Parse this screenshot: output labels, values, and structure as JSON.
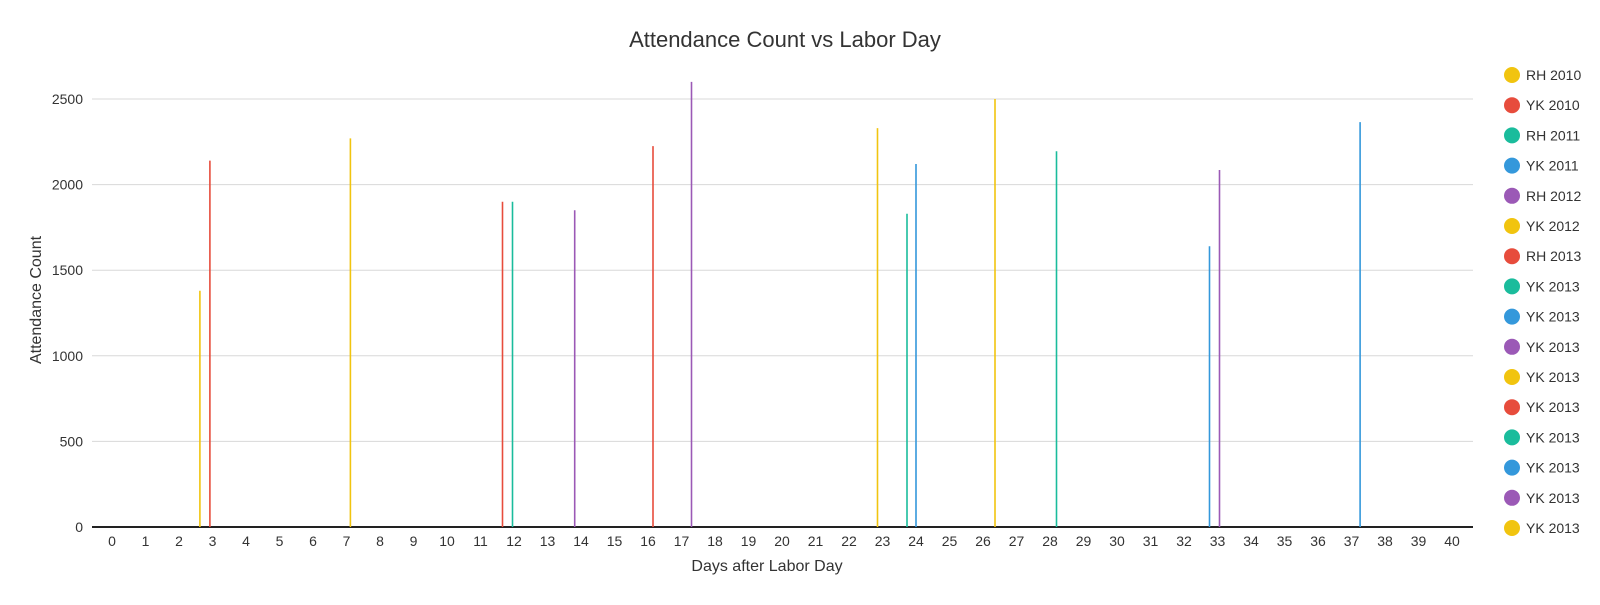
{
  "chart_data": {
    "type": "bar",
    "title": "Attendance Count vs Labor Day",
    "xlabel": "Days after Labor Day",
    "ylabel": "Attendance Count",
    "categories": [
      0,
      1,
      2,
      3,
      4,
      5,
      6,
      7,
      8,
      9,
      10,
      11,
      12,
      13,
      14,
      15,
      16,
      17,
      18,
      19,
      20,
      21,
      22,
      23,
      24,
      25,
      26,
      27,
      28,
      29,
      30,
      31,
      32,
      33,
      34,
      35,
      36,
      37,
      38,
      39,
      40
    ],
    "yticks": [
      0,
      500,
      1000,
      1500,
      2000,
      2500
    ],
    "ylim": [
      0,
      2600
    ],
    "grid": true,
    "legend_position": "right",
    "series": [
      {
        "name": "RH 2010",
        "color": "#f1c40f",
        "points": [
          {
            "x": 3,
            "y": 1380
          }
        ]
      },
      {
        "name": "YK 2010",
        "color": "#e74c3c",
        "points": [
          {
            "x": 3,
            "y": 2140
          }
        ]
      },
      {
        "name": "RH 2011",
        "color": "#1abc9c",
        "points": [
          {
            "x": 12,
            "y": 1900
          }
        ]
      },
      {
        "name": "YK 2011",
        "color": "#3498db",
        "points": [
          {
            "x": 24,
            "y": 2120
          }
        ]
      },
      {
        "name": "RH 2012",
        "color": "#9b59b6",
        "points": [
          {
            "x": 14,
            "y": 1850
          }
        ]
      },
      {
        "name": "YK 2012",
        "color": "#f1c40f",
        "points": [
          {
            "x": 7,
            "y": 2270
          }
        ]
      },
      {
        "name": "RH 2013",
        "color": "#e74c3c",
        "points": [
          {
            "x": 12,
            "y": 1900
          }
        ]
      },
      {
        "name": "YK 2013",
        "color": "#1abc9c",
        "points": [
          {
            "x": 24,
            "y": 1830
          }
        ]
      },
      {
        "name": "YK 2013",
        "color": "#3498db",
        "points": [
          {
            "x": 33,
            "y": 1640
          }
        ]
      },
      {
        "name": "YK 2013",
        "color": "#9b59b6",
        "points": [
          {
            "x": 17,
            "y": 2600
          }
        ]
      },
      {
        "name": "YK 2013",
        "color": "#f1c40f",
        "points": [
          {
            "x": 23,
            "y": 2330
          }
        ]
      },
      {
        "name": "YK 2013",
        "color": "#e74c3c",
        "points": [
          {
            "x": 16,
            "y": 2225
          }
        ]
      },
      {
        "name": "YK 2013",
        "color": "#1abc9c",
        "points": [
          {
            "x": 28,
            "y": 2195
          }
        ]
      },
      {
        "name": "YK 2013",
        "color": "#3498db",
        "points": [
          {
            "x": 37,
            "y": 2365
          }
        ]
      },
      {
        "name": "YK 2013",
        "color": "#9b59b6",
        "points": [
          {
            "x": 33,
            "y": 2085
          }
        ]
      },
      {
        "name": "YK 2013",
        "color": "#f1c40f",
        "points": [
          {
            "x": 26,
            "y": 2500
          }
        ]
      }
    ]
  }
}
